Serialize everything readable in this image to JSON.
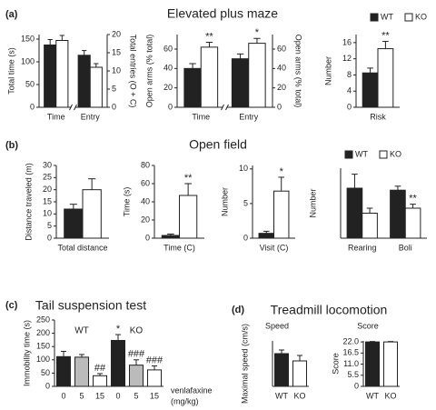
{
  "panels": [
    {
      "label": "(a)",
      "title": "Elevated plus maze"
    },
    {
      "label": "(b)",
      "title": "Open field"
    },
    {
      "label": "(c)",
      "title": "Tail suspension test"
    },
    {
      "label": "(d)",
      "title": "Treadmill locomotion"
    }
  ],
  "chart_data": [
    {
      "type": "bar",
      "ylabel": "Total time (s)",
      "y2label": "Total entries (O + C)",
      "categories": [
        "Time",
        "Entry"
      ],
      "category_axis": [
        "y",
        "y2"
      ],
      "axis_break": true,
      "series": [
        {
          "name": "WT",
          "color": "#222222",
          "values": [
            137,
            14.3
          ],
          "errors": [
            12,
            1.3
          ],
          "significance": [
            null,
            null
          ]
        },
        {
          "name": "KO",
          "color": "#ffffff",
          "values": [
            147,
            11
          ],
          "errors": [
            11,
            1
          ],
          "significance": [
            null,
            null
          ]
        }
      ],
      "ylim": [
        0,
        160
      ],
      "yticks": [
        0,
        50,
        100,
        150
      ],
      "y2lim": [
        0,
        20
      ],
      "y2ticks": [
        0,
        5,
        10,
        15,
        20
      ]
    },
    {
      "type": "bar",
      "ylabel": "Open arms (% total)",
      "y2label": "Open arms (% total)",
      "categories": [
        "Time",
        "Entry"
      ],
      "category_axis": [
        "y",
        "y2"
      ],
      "axis_break": true,
      "series": [
        {
          "name": "WT",
          "color": "#222222",
          "values": [
            40,
            50
          ],
          "errors": [
            5,
            5
          ],
          "significance": [
            null,
            null
          ]
        },
        {
          "name": "KO",
          "color": "#ffffff",
          "values": [
            62,
            66
          ],
          "errors": [
            5,
            5
          ],
          "significance": [
            "**",
            "*"
          ]
        }
      ],
      "ylim": [
        0,
        75
      ],
      "yticks": [
        0,
        20,
        40,
        60
      ],
      "y2lim": [
        0,
        75
      ],
      "y2ticks": [
        0,
        20,
        40,
        60
      ]
    },
    {
      "type": "bar",
      "ylabel": "Number",
      "categories": [
        "Risk"
      ],
      "legend": "top",
      "series": [
        {
          "name": "WT",
          "color": "#222222",
          "values": [
            8.5
          ],
          "errors": [
            1.2
          ],
          "significance": [
            null
          ]
        },
        {
          "name": "KO",
          "color": "#ffffff",
          "values": [
            14.5
          ],
          "errors": [
            1.8
          ],
          "significance": [
            "**"
          ]
        }
      ],
      "ylim": [
        0,
        18
      ],
      "yticks": [
        0,
        4,
        8,
        12,
        16
      ]
    },
    {
      "type": "bar",
      "ylabel": "Distance traveled (m)",
      "categories": [
        "Total distance"
      ],
      "series": [
        {
          "name": "WT",
          "color": "#222222",
          "values": [
            12
          ],
          "errors": [
            2
          ],
          "significance": [
            null
          ]
        },
        {
          "name": "KO",
          "color": "#ffffff",
          "values": [
            20
          ],
          "errors": [
            4.5
          ],
          "significance": [
            null
          ]
        }
      ],
      "ylim": [
        0,
        30
      ],
      "yticks": [
        0,
        5,
        10,
        15,
        20,
        25,
        30
      ]
    },
    {
      "type": "bar",
      "ylabel": "Time (s)",
      "categories": [
        "Time (C)"
      ],
      "series": [
        {
          "name": "WT",
          "color": "#222222",
          "values": [
            3
          ],
          "errors": [
            1.5
          ],
          "significance": [
            null
          ]
        },
        {
          "name": "KO",
          "color": "#ffffff",
          "values": [
            47
          ],
          "errors": [
            13
          ],
          "significance": [
            "**"
          ]
        }
      ],
      "ylim": [
        0,
        80
      ],
      "yticks": [
        0,
        20,
        40,
        60,
        80
      ]
    },
    {
      "type": "bar",
      "ylabel": "Number",
      "categories": [
        "Visit (C)"
      ],
      "series": [
        {
          "name": "WT",
          "color": "#222222",
          "values": [
            0.7
          ],
          "errors": [
            0.3
          ],
          "significance": [
            null
          ]
        },
        {
          "name": "KO",
          "color": "#ffffff",
          "values": [
            6.8
          ],
          "errors": [
            2
          ],
          "significance": [
            "*"
          ]
        }
      ],
      "ylim": [
        0,
        10.5
      ],
      "yticks": [
        0,
        5,
        10
      ]
    },
    {
      "type": "bar",
      "ylabel": "Number",
      "categories": [
        "Rearing",
        "Boli"
      ],
      "legend": "top",
      "series": [
        {
          "name": "WT",
          "color": "#222222",
          "values": [
            5,
            4.8
          ],
          "errors": [
            1.4,
            0.4
          ],
          "significance": [
            null,
            null
          ]
        },
        {
          "name": "KO",
          "color": "#ffffff",
          "values": [
            2.5,
            3
          ],
          "errors": [
            0.5,
            0.4
          ],
          "significance": [
            null,
            "**"
          ]
        }
      ],
      "ylim": [
        0,
        7
      ]
    },
    {
      "type": "bar",
      "ylabel": "Immobility time (s)",
      "groups": [
        "WT",
        "KO"
      ],
      "categories": [
        "0",
        "5",
        "15",
        "0",
        "5",
        "15"
      ],
      "xlabel": [
        "venlafaxine",
        "(mg/kg)"
      ],
      "series": [
        {
          "colors": [
            "#222222",
            "#bbbbbb",
            "#ffffff",
            "#222222",
            "#bbbbbb",
            "#ffffff"
          ],
          "values": [
            112,
            110,
            40,
            173,
            80,
            62
          ],
          "errors": [
            20,
            10,
            8,
            22,
            20,
            15
          ],
          "significance": [
            null,
            null,
            "##",
            "*",
            "###",
            "###"
          ]
        }
      ],
      "ylim": [
        0,
        250
      ],
      "yticks": [
        0,
        50,
        100,
        150,
        200,
        250
      ]
    },
    {
      "type": "bar",
      "subtitle": "Speed",
      "ylabel": "Maximal speed (cm/s)",
      "categories": [
        "WT",
        "KO"
      ],
      "series": [
        {
          "colors": [
            "#222222",
            "#ffffff"
          ],
          "values": [
            18,
            14
          ],
          "errors": [
            2,
            3
          ],
          "significance": [
            null,
            null
          ]
        }
      ],
      "ylim": [
        0,
        25
      ]
    },
    {
      "type": "bar",
      "subtitle": "Score",
      "ylabel": "Score",
      "categories": [
        "WT",
        "KO"
      ],
      "series": [
        {
          "colors": [
            "#222222",
            "#ffffff"
          ],
          "values": [
            22,
            22
          ],
          "errors": [
            0.2,
            0.2
          ],
          "significance": [
            null,
            null
          ]
        }
      ],
      "ylim": [
        0,
        22.5
      ],
      "yticks": [
        0,
        5.5,
        {
          "value": 11,
          "label": "11.0"
        },
        16.5,
        {
          "value": 22,
          "label": "22.0"
        }
      ]
    }
  ]
}
